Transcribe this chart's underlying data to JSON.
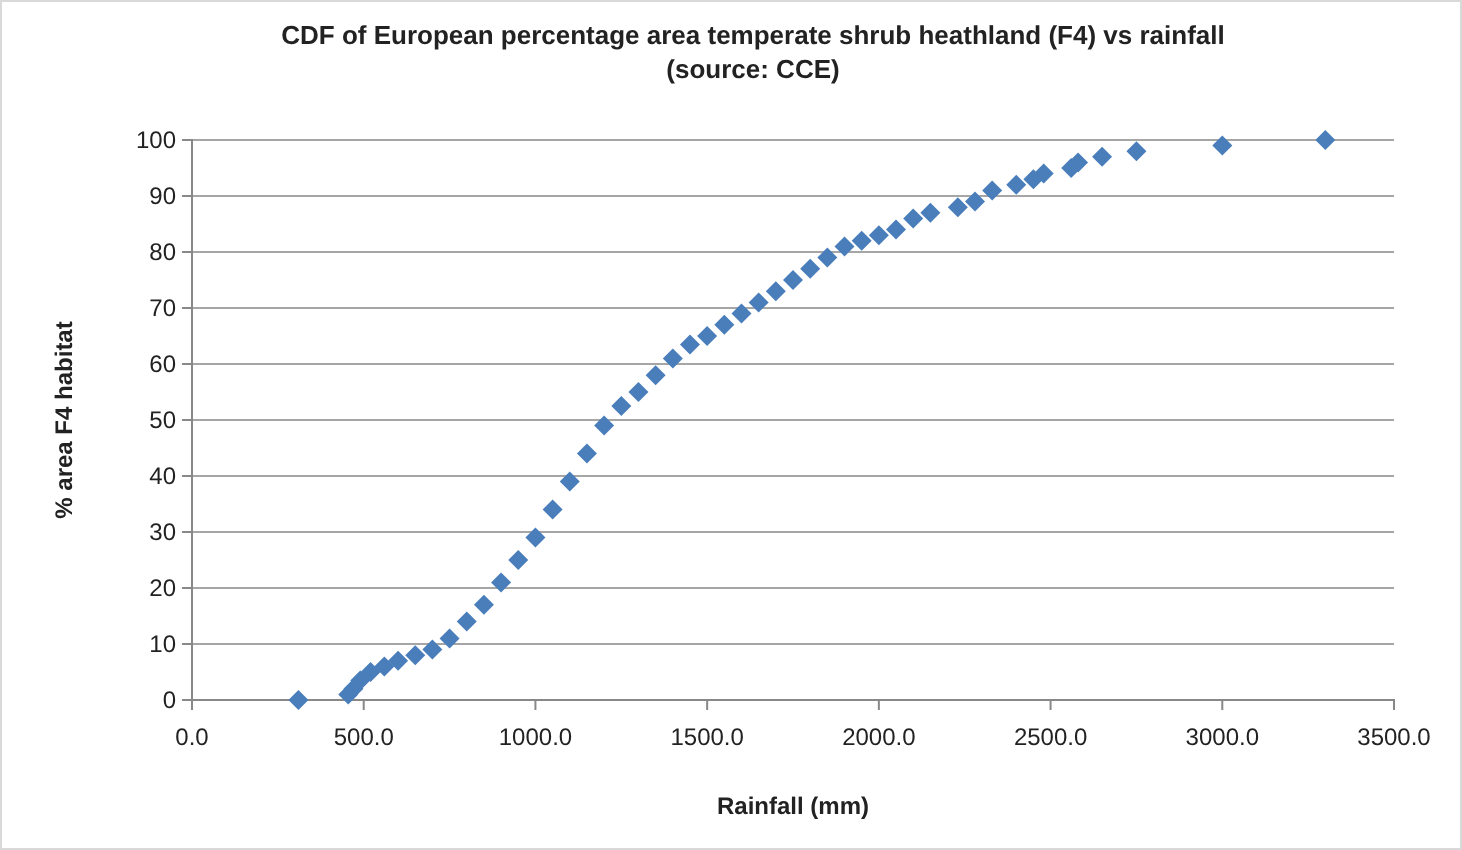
{
  "chart_data": {
    "type": "scatter",
    "title": "CDF of European  percentage area temperate shrub heathland (F4) vs rainfall\n(source: CCE)",
    "xlabel": "Rainfall  (mm)",
    "ylabel": "% area F4 habitat",
    "x": [
      310,
      455,
      470,
      490,
      520,
      560,
      600,
      650,
      700,
      750,
      800,
      850,
      900,
      950,
      1000,
      1050,
      1100,
      1150,
      1200,
      1250,
      1300,
      1350,
      1400,
      1450,
      1500,
      1550,
      1600,
      1650,
      1700,
      1750,
      1800,
      1850,
      1900,
      1950,
      2000,
      2050,
      2100,
      2150,
      2230,
      2280,
      2330,
      2400,
      2450,
      2480,
      2560,
      2580,
      2650,
      2750,
      3000,
      3300
    ],
    "series": [
      {
        "color": "#4a7ebb",
        "values": [
          0,
          1,
          2,
          3.5,
          5,
          6,
          7,
          8,
          9,
          11,
          14,
          17,
          21,
          25,
          29,
          34,
          39,
          44,
          49,
          52.5,
          55,
          58,
          61,
          63.5,
          65,
          67,
          69,
          71,
          73,
          75,
          77,
          79,
          81,
          82,
          83,
          84,
          86,
          87,
          88,
          89,
          91,
          92,
          93,
          94,
          95,
          96,
          97,
          98,
          99,
          100
        ]
      }
    ],
    "xlim": [
      0,
      3500
    ],
    "xticks": [
      {
        "value": 0,
        "label": "0.0"
      },
      {
        "value": 500,
        "label": "500.0"
      },
      {
        "value": 1000,
        "label": "1000.0"
      },
      {
        "value": 1500,
        "label": "1500.0"
      },
      {
        "value": 2000,
        "label": "2000.0"
      },
      {
        "value": 2500,
        "label": "2500.0"
      },
      {
        "value": 3000,
        "label": "3000.0"
      },
      {
        "value": 3500,
        "label": "3500.0"
      }
    ],
    "ylim": [
      0,
      100
    ],
    "yticks": [
      0,
      10,
      20,
      30,
      40,
      50,
      60,
      70,
      80,
      90,
      100
    ],
    "grid": "y",
    "marker": "diamond"
  }
}
